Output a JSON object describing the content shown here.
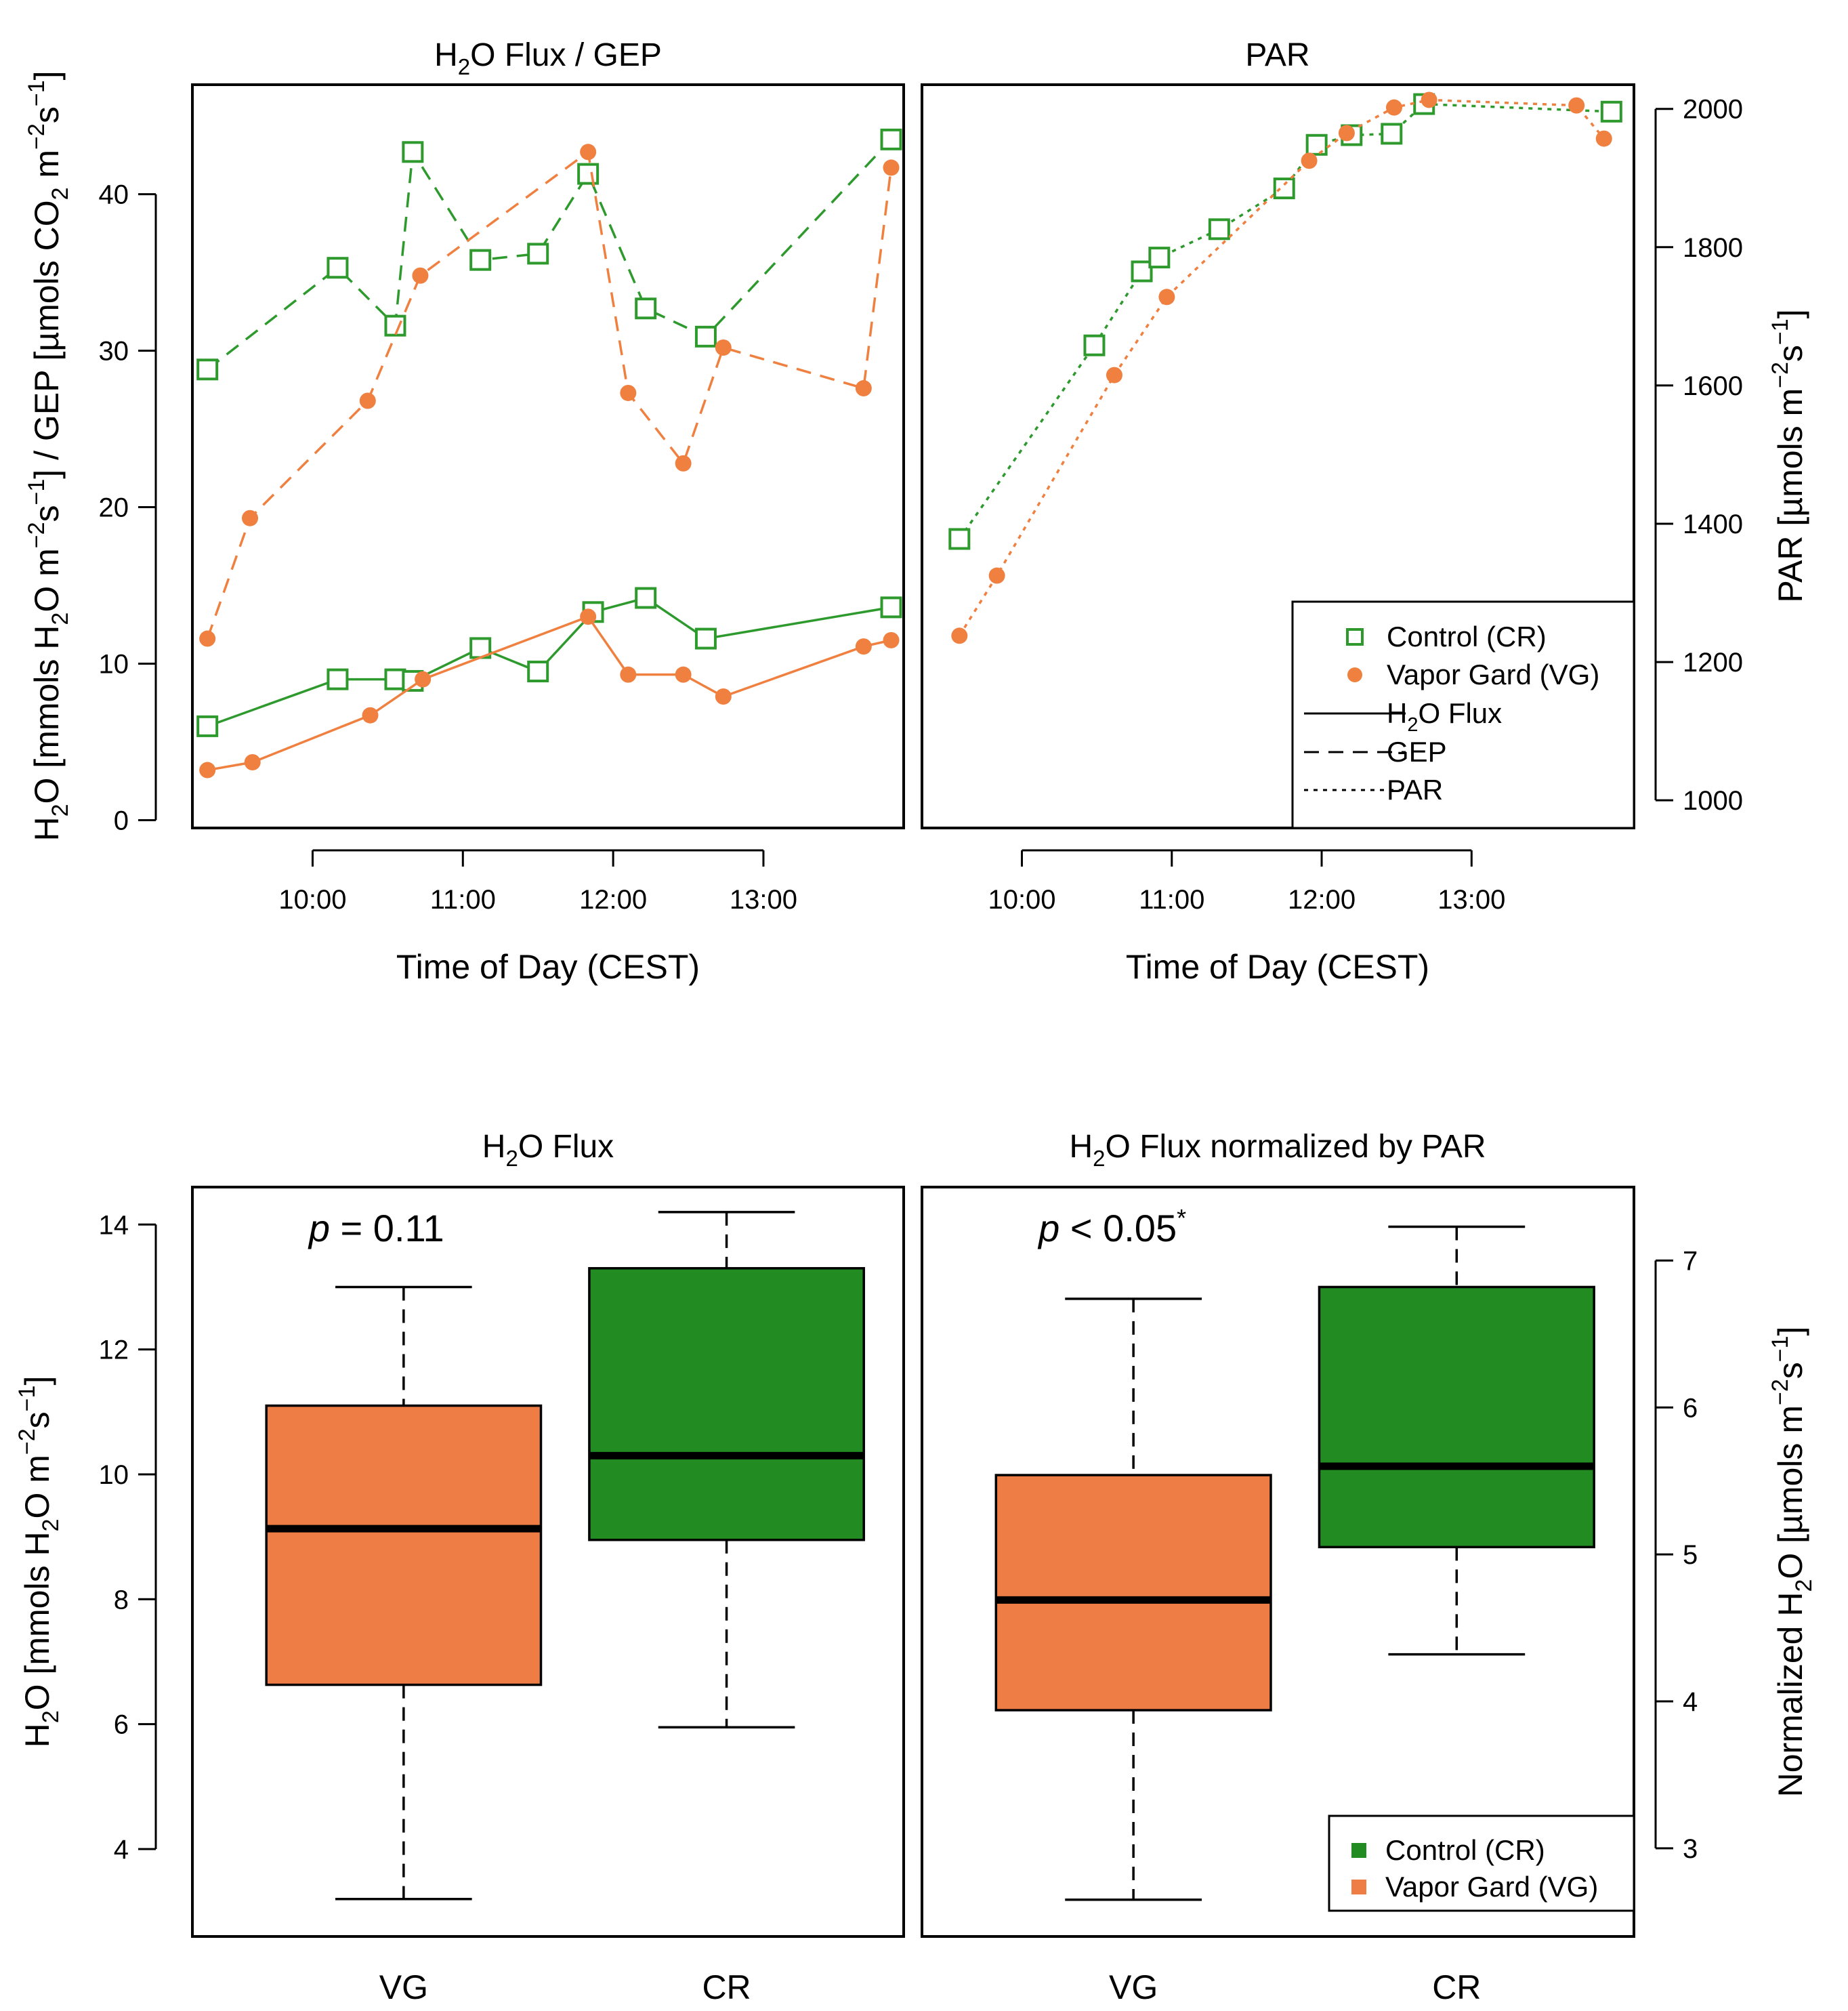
{
  "colors": {
    "control": "#2e9a2e",
    "vg": "#f08040",
    "box_control": "#228b22",
    "box_vg": "#ee7d45"
  },
  "chart_data": [
    {
      "type": "line",
      "title": "H₂O Flux / GEP",
      "xlabel": "Time of Day (CEST)",
      "ylabel": "H₂O [mmols H₂O m⁻²s⁻¹] / GEP [µmols CO₂ m⁻²s⁻¹]",
      "x_ticks": [
        "10:00",
        "11:00",
        "12:00",
        "13:00"
      ],
      "y_ticks": [
        0,
        10,
        20,
        30,
        40
      ],
      "xlim": [
        "09:12",
        "13:56"
      ],
      "ylim": [
        -0.5,
        47
      ],
      "series": [
        {
          "name": "Control (CR)",
          "variable": "GEP",
          "marker": "square",
          "line": "dashed",
          "x": [
            "09:18",
            "10:10",
            "10:33",
            "10:40",
            "11:07",
            "11:30",
            "11:50",
            "12:13",
            "12:37",
            "13:51"
          ],
          "y": [
            28.8,
            35.3,
            31.6,
            42.7,
            35.8,
            36.2,
            41.3,
            32.7,
            30.9,
            43.5
          ]
        },
        {
          "name": "Vapor Gard (VG)",
          "variable": "GEP",
          "marker": "circle",
          "line": "dashed",
          "x": [
            "09:18",
            "09:35",
            "10:22",
            "10:43",
            "11:50",
            "12:06",
            "12:28",
            "12:44",
            "13:40",
            "13:51"
          ],
          "y": [
            11.6,
            19.3,
            26.8,
            34.8,
            42.7,
            27.3,
            22.8,
            30.2,
            27.6,
            41.7
          ]
        },
        {
          "name": "Control (CR)",
          "variable": "H2O Flux",
          "marker": "square",
          "line": "solid",
          "x": [
            "09:18",
            "10:10",
            "10:33",
            "10:40",
            "11:07",
            "11:30",
            "11:52",
            "12:13",
            "12:37",
            "13:51"
          ],
          "y": [
            6.0,
            9.0,
            9.0,
            8.9,
            11.0,
            9.5,
            13.3,
            14.2,
            11.6,
            13.6
          ]
        },
        {
          "name": "Vapor Gard (VG)",
          "variable": "H2O Flux",
          "marker": "circle",
          "line": "solid",
          "x": [
            "09:18",
            "09:36",
            "10:23",
            "10:44",
            "11:50",
            "12:06",
            "12:28",
            "12:44",
            "13:40",
            "13:51"
          ],
          "y": [
            3.2,
            3.7,
            6.7,
            9.0,
            13.0,
            9.3,
            9.3,
            7.9,
            11.1,
            11.5
          ]
        }
      ]
    },
    {
      "type": "line",
      "title": "PAR",
      "xlabel": "Time of Day (CEST)",
      "ylabel": "PAR [µmols m⁻²s⁻¹]",
      "x_ticks": [
        "10:00",
        "11:00",
        "12:00",
        "13:00"
      ],
      "y_ticks": [
        1000,
        1200,
        1400,
        1600,
        1800,
        2000
      ],
      "xlim": [
        "09:20",
        "14:05"
      ],
      "ylim": [
        960,
        2035
      ],
      "series": [
        {
          "name": "Control (CR)",
          "variable": "PAR",
          "marker": "square",
          "line": "dotted",
          "x": [
            "09:35",
            "10:29",
            "10:48",
            "10:55",
            "11:19",
            "11:45",
            "11:58",
            "12:12",
            "12:28",
            "12:41",
            "13:56"
          ],
          "y": [
            1378,
            1658,
            1765,
            1785,
            1826,
            1885,
            1948,
            1962,
            1964,
            2007,
            1996
          ]
        },
        {
          "name": "Vapor Gard (VG)",
          "variable": "PAR",
          "marker": "circle",
          "line": "dotted",
          "x": [
            "09:35",
            "09:50",
            "10:37",
            "10:58",
            "11:55",
            "12:10",
            "12:29",
            "12:43",
            "13:42",
            "13:53"
          ],
          "y": [
            1238,
            1325,
            1615,
            1728,
            1925,
            1965,
            2002,
            2013,
            2005,
            1957
          ]
        }
      ],
      "legend": {
        "position": "bottom-right",
        "entries": [
          "Control (CR)",
          "Vapor Gard (VG)",
          "H₂O Flux",
          "GEP",
          "PAR"
        ]
      }
    },
    {
      "type": "box",
      "title": "H₂O Flux",
      "ylabel": "H₂O [mmols H₂O m⁻²s⁻¹]",
      "y_ticks": [
        4,
        6,
        8,
        10,
        12,
        14
      ],
      "ylim": [
        2.6,
        14.6
      ],
      "annotation": {
        "prefix": "p",
        "text": "= 0.11"
      },
      "boxes": [
        {
          "name": "VG",
          "min": 3.2,
          "q1": 6.63,
          "median": 9.13,
          "q3": 11.1,
          "max": 13.0
        },
        {
          "name": "CR",
          "min": 5.95,
          "q1": 8.95,
          "median": 10.3,
          "q3": 13.3,
          "max": 14.2
        }
      ]
    },
    {
      "type": "box",
      "title": "H₂O Flux normalized by PAR",
      "ylabel": "Normalized H₂O [µmols m⁻²s⁻¹]",
      "y_ticks": [
        3,
        4,
        5,
        6,
        7
      ],
      "ylim": [
        2.4,
        7.5
      ],
      "annotation": {
        "prefix": "p",
        "text": "< 0.05",
        "sup": "*"
      },
      "boxes": [
        {
          "name": "VG",
          "min": 2.65,
          "q1": 3.94,
          "median": 4.69,
          "q3": 5.54,
          "max": 6.74
        },
        {
          "name": "CR",
          "min": 4.32,
          "q1": 5.05,
          "median": 5.6,
          "q3": 6.82,
          "max": 7.23
        }
      ],
      "legend": {
        "position": "bottom-right",
        "entries": [
          "Control (CR)",
          "Vapor Gard (VG)"
        ]
      }
    }
  ]
}
